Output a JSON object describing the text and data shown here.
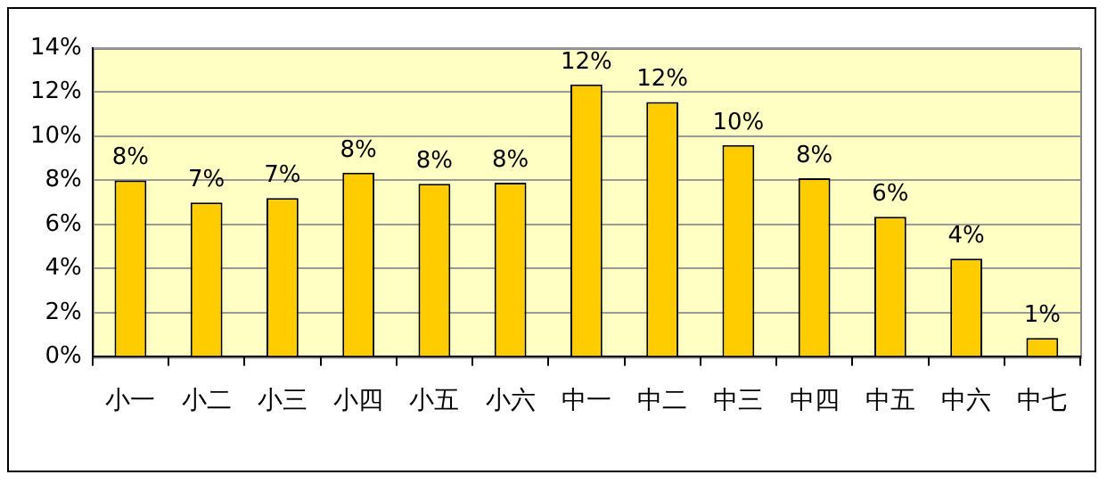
{
  "chart_data": {
    "type": "bar",
    "categories": [
      "小一",
      "小二",
      "小三",
      "小四",
      "小五",
      "小六",
      "中一",
      "中二",
      "中三",
      "中四",
      "中五",
      "中六",
      "中七"
    ],
    "values": [
      8.0,
      7.0,
      7.2,
      8.35,
      7.85,
      7.9,
      12.35,
      11.55,
      9.6,
      8.1,
      6.35,
      4.45,
      0.85
    ],
    "value_labels": [
      "8%",
      "7%",
      "7%",
      "8%",
      "8%",
      "8%",
      "12%",
      "12%",
      "10%",
      "8%",
      "6%",
      "4%",
      "1%"
    ],
    "color": "#ffcc00",
    "ylim": [
      0,
      14
    ],
    "yticks": [
      {
        "value": 0,
        "label": "0%"
      },
      {
        "value": 2,
        "label": "2%"
      },
      {
        "value": 4,
        "label": "4%"
      },
      {
        "value": 6,
        "label": "6%"
      },
      {
        "value": 8,
        "label": "8%"
      },
      {
        "value": 10,
        "label": "10%"
      },
      {
        "value": 12,
        "label": "12%"
      },
      {
        "value": 14,
        "label": "14%"
      }
    ],
    "grid": "y",
    "legend": false
  }
}
